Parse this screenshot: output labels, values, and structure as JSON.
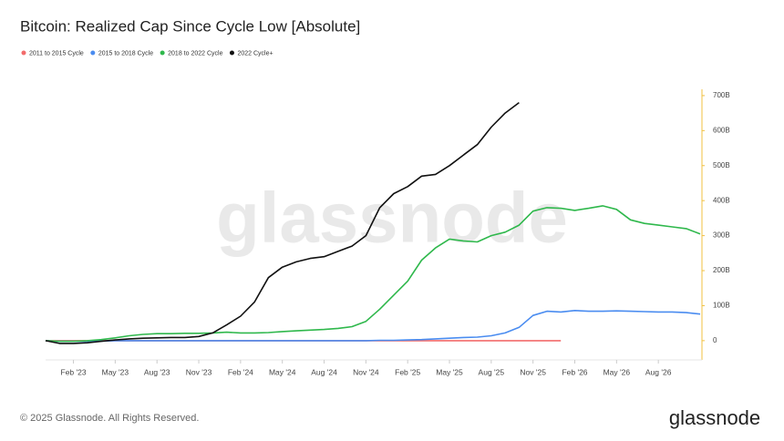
{
  "chart_data": {
    "type": "line",
    "title": "Bitcoin: Realized Cap Since Cycle Low [Absolute]",
    "categories": [
      null,
      null,
      "Feb '23",
      null,
      null,
      "May '23",
      null,
      null,
      "Aug '23",
      null,
      null,
      "Nov '23",
      null,
      null,
      "Feb '24",
      null,
      null,
      "May '24",
      null,
      null,
      "Aug '24",
      null,
      null,
      "Nov '24",
      null,
      null,
      "Feb '25",
      null,
      null,
      "May '25",
      null,
      null,
      "Aug '25",
      null,
      null,
      "Nov '25",
      null,
      null,
      "Feb '26",
      null,
      null,
      "May '26",
      null,
      null,
      "Aug '26",
      null,
      null,
      null
    ],
    "series": [
      {
        "name": "2011 to 2015 Cycle",
        "color": "#f26b6b",
        "values": [
          0,
          0,
          0,
          0,
          0,
          0,
          0,
          0,
          0,
          0,
          0,
          0,
          0,
          0,
          0,
          0,
          0,
          0,
          0,
          0,
          0,
          0,
          0,
          0,
          0,
          0,
          0,
          0,
          0,
          0,
          0,
          0,
          0,
          0,
          0,
          0,
          0,
          0,
          null,
          null,
          null,
          null,
          null,
          null,
          null,
          null,
          null,
          null
        ]
      },
      {
        "name": "2015 to 2018 Cycle",
        "color": "#4a8cf0",
        "values": [
          0,
          -2,
          -2,
          -2,
          -1,
          0,
          0,
          0,
          0,
          0,
          0,
          0,
          0,
          0,
          0,
          0,
          0,
          0,
          0,
          0,
          0,
          0,
          0,
          0,
          1,
          1,
          2,
          3,
          5,
          7,
          9,
          10,
          14,
          22,
          38,
          72,
          84,
          82,
          86,
          84,
          84,
          85,
          84,
          83,
          82,
          82,
          80,
          76
        ]
      },
      {
        "name": "2018 to 2022 Cycle",
        "color": "#2fb84c",
        "values": [
          0,
          -2,
          -2,
          0,
          3,
          8,
          14,
          18,
          20,
          20,
          21,
          21,
          22,
          24,
          22,
          22,
          23,
          26,
          28,
          30,
          32,
          35,
          40,
          55,
          90,
          130,
          170,
          230,
          265,
          290,
          285,
          282,
          300,
          310,
          330,
          370,
          380,
          378,
          372,
          378,
          385,
          375,
          345,
          335,
          330,
          325,
          320,
          305
        ]
      },
      {
        "name": "2022 Cycle+",
        "color": "#111111",
        "values": [
          0,
          -8,
          -8,
          -6,
          -2,
          2,
          5,
          7,
          8,
          9,
          9,
          12,
          22,
          45,
          70,
          110,
          180,
          210,
          225,
          235,
          240,
          255,
          270,
          300,
          380,
          420,
          440,
          470,
          475,
          500,
          530,
          560,
          610,
          650,
          680,
          null,
          null,
          null,
          null,
          null,
          null,
          null,
          null,
          null,
          null,
          null,
          null,
          null
        ]
      }
    ],
    "ylim": [
      -55,
      718
    ],
    "yticks": [
      0,
      {
        "value": 100,
        "label": "100B"
      },
      {
        "value": 200,
        "label": "200B"
      },
      {
        "value": 300,
        "label": "300B"
      },
      {
        "value": 400,
        "label": "400B"
      },
      {
        "value": 500,
        "label": "500B"
      },
      {
        "value": 600,
        "label": "600B"
      },
      {
        "value": 700,
        "label": "700B"
      }
    ],
    "y_axis_side": "right",
    "watermark": "glassnode",
    "footer": "© 2025 Glassnode. All Rights Reserved."
  }
}
